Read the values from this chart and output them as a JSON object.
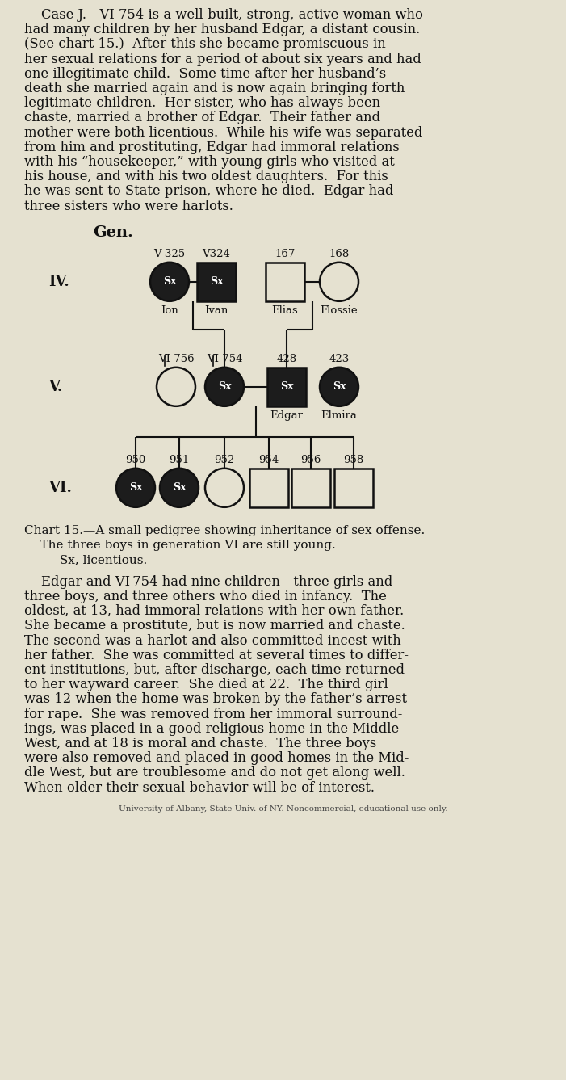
{
  "bg_color": "#e5e1d0",
  "text_color": "#111111",
  "dark_fill": "#1c1c1c",
  "light_fill": "#e5e1d0",
  "border_color": "#111111",
  "footer": "University of Albany, State Univ. of NY. Noncommercial, educational use only.",
  "chart_caption_1": "Chart 15.—A small pedigree showing inheritance of sex offense.",
  "chart_caption_2": "The three boys in generation VI are still young.",
  "chart_caption_3": "Sx, licentious.",
  "top_lines": [
    "    Case J.—VI 754 is a well-built, strong, active woman who",
    "had many children by her husband Edgar, a distant cousin.",
    "(See chart 15.)  After this she became promiscuous in",
    "her sexual relations for a period of about six years and had",
    "one illegitimate child.  Some time after her husband’s",
    "death she married again and is now again bringing forth",
    "legitimate children.  Her sister, who has always been",
    "chaste, married a brother of Edgar.  Their father and",
    "mother were both licentious.  While his wife was separated",
    "from him and prostituting, Edgar had immoral relations",
    "with his “housekeeper,” with young girls who visited at",
    "his house, and with his two oldest daughters.  For this",
    "he was sent to State prison, where he died.  Edgar had",
    "three sisters who were harlots."
  ],
  "bottom_lines": [
    "    Edgar and VI 754 had nine children—three girls and",
    "three boys, and three others who died in infancy.  The",
    "oldest, at 13, had immoral relations with her own father.",
    "She became a prostitute, but is now married and chaste.",
    "The second was a harlot and also committed incest with",
    "her father.  She was committed at several times to differ-",
    "ent institutions, but, after discharge, each time returned",
    "to her wayward career.  She died at 22.  The third girl",
    "was 12 when the home was broken by the father’s arrest",
    "for rape.  She was removed from her immoral surround-",
    "ings, was placed in a good religious home in the Middle",
    "West, and at 18 is moral and chaste.  The three boys",
    "were also removed and placed in good homes in the Mid-",
    "dle West, but are troublesome and do not get along well.",
    "When older their sexual behavior will be of interest."
  ]
}
